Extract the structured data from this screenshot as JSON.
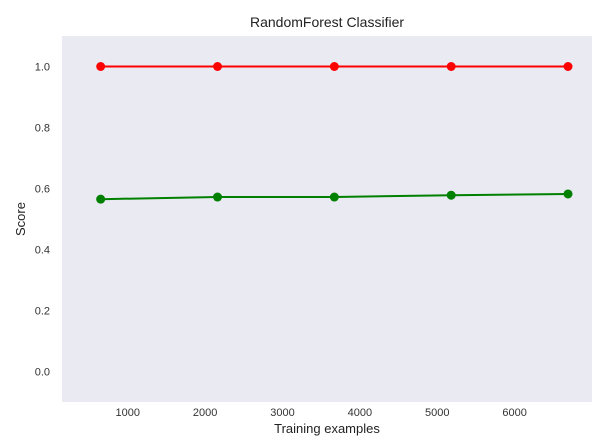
{
  "chart_data": {
    "type": "line",
    "title": "RandomForest Classifier",
    "xlabel": "Training examples",
    "ylabel": "Score",
    "xlim": [
      150,
      7000
    ],
    "ylim": [
      -0.1,
      1.1
    ],
    "xticks": [
      1000,
      2000,
      3000,
      4000,
      5000,
      6000
    ],
    "yticks": [
      0.0,
      0.2,
      0.4,
      0.6,
      0.8,
      1.0
    ],
    "ytick_labels": [
      "0.0",
      "0.2",
      "0.4",
      "0.6",
      "0.8",
      "1.0"
    ],
    "grid": false,
    "background": "#eaeaf2",
    "x": [
      650,
      2160,
      3670,
      5180,
      6690
    ],
    "series": [
      {
        "values": [
          1.0,
          1.0,
          1.0,
          1.0,
          1.0
        ],
        "color": "#ff0000"
      },
      {
        "values": [
          0.565,
          0.572,
          0.572,
          0.578,
          0.582
        ],
        "color": "#008000"
      }
    ]
  }
}
